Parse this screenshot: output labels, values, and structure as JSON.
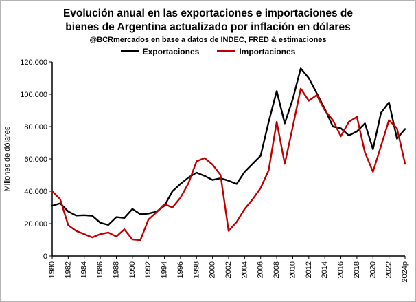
{
  "header": {
    "title_line1": "Evolución anual en las exportaciones e importaciones de",
    "title_line2": "bienes de Argentina actualizado por inflación en dólares",
    "subtitle": "@BCRmercados en base a datos de INDEC, FRED & estimaciones"
  },
  "legend": {
    "items": [
      {
        "label": "Exportaciones",
        "color": "#000000"
      },
      {
        "label": "Importaciones",
        "color": "#c00000"
      }
    ]
  },
  "chart_data": {
    "type": "line",
    "title": "Evolución anual en las exportaciones e importaciones de bienes de Argentina actualizado por inflación en dólares",
    "subtitle": "@BCRmercados en base a datos de INDEC, FRED & estimaciones",
    "ylabel": "Millones de dólares",
    "xlabel": "",
    "grid": false,
    "legend_position": "top",
    "ylim": [
      0,
      120000
    ],
    "y_ticks": [
      0,
      20000,
      40000,
      60000,
      80000,
      100000,
      120000
    ],
    "y_tick_labels": [
      "0",
      "20.000",
      "40.000",
      "60.000",
      "80.000",
      "100.000",
      "120.000"
    ],
    "x": [
      1980,
      1981,
      1982,
      1983,
      1984,
      1985,
      1986,
      1987,
      1988,
      1989,
      1990,
      1991,
      1992,
      1993,
      1994,
      1995,
      1996,
      1997,
      1998,
      1999,
      2000,
      2001,
      2002,
      2003,
      2004,
      2005,
      2006,
      2007,
      2008,
      2009,
      2010,
      2011,
      2012,
      2013,
      2014,
      2015,
      2016,
      2017,
      2018,
      2019,
      2020,
      2021,
      2022,
      2023,
      2024
    ],
    "x_tick_every": 2,
    "x_tick_labels": [
      "1980",
      "1982",
      "1984",
      "1986",
      "1988",
      "1990",
      "1992",
      "1994",
      "1996",
      "1998",
      "2000",
      "2002",
      "2004",
      "2006",
      "2008",
      "2010",
      "2012",
      "2014",
      "2016",
      "2018",
      "2020",
      "2022",
      "2024p"
    ],
    "series": [
      {
        "name": "Exportaciones",
        "color": "#000000",
        "values": [
          31000,
          32500,
          27500,
          25000,
          25200,
          24800,
          20500,
          19200,
          24000,
          23500,
          29000,
          25800,
          26200,
          27400,
          31000,
          40000,
          44500,
          48500,
          51500,
          49500,
          47000,
          48000,
          46500,
          44500,
          52000,
          57000,
          62000,
          83000,
          102000,
          82000,
          97000,
          116000,
          110000,
          100500,
          91000,
          80000,
          79000,
          74500,
          77000,
          82000,
          66000,
          88500,
          95000,
          72500,
          78500
        ]
      },
      {
        "name": "Importaciones",
        "color": "#c00000",
        "values": [
          40000,
          35000,
          19000,
          15500,
          13500,
          11500,
          13500,
          14500,
          12000,
          16500,
          10200,
          9800,
          22500,
          27000,
          32000,
          30000,
          36000,
          45000,
          58500,
          60500,
          56500,
          50000,
          15500,
          21000,
          29000,
          35000,
          42000,
          53000,
          83000,
          57000,
          80000,
          103500,
          96000,
          99500,
          90000,
          84000,
          74000,
          83000,
          86000,
          64000,
          52000,
          68000,
          84000,
          79000,
          57000
        ]
      }
    ]
  }
}
